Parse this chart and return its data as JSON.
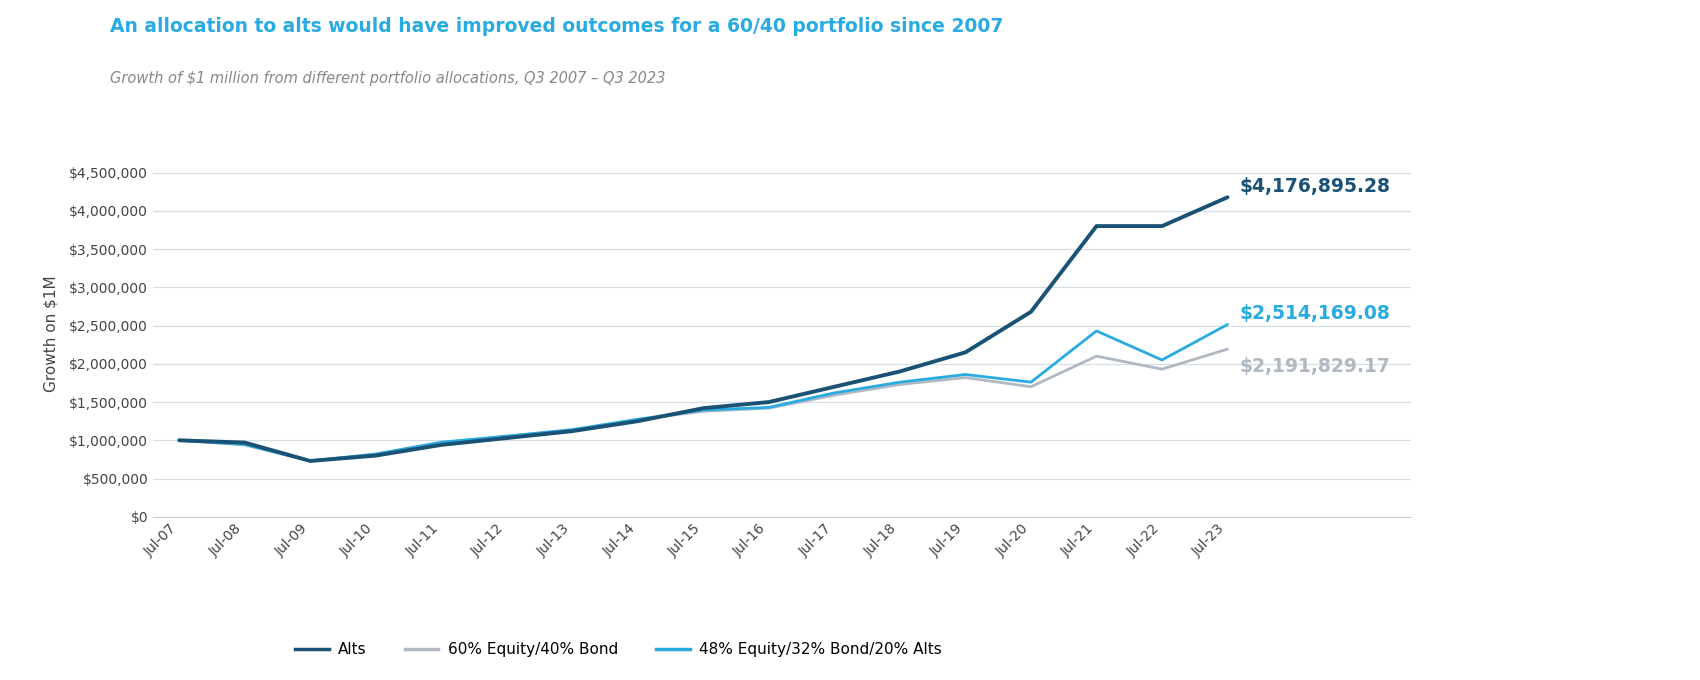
{
  "title": "An allocation to alts would have improved outcomes for a 60/40 portfolio since 2007",
  "subtitle": "Growth of $1 million from different portfolio allocations, Q3 2007 – Q3 2023",
  "title_color": "#29abe2",
  "subtitle_color": "#888888",
  "ylabel": "Growth on $1M",
  "x_labels": [
    "Jul-07",
    "Jul-08",
    "Jul-09",
    "Jul-10",
    "Jul-11",
    "Jul-12",
    "Jul-13",
    "Jul-14",
    "Jul-15",
    "Jul-16",
    "Jul-17",
    "Jul-18",
    "Jul-19",
    "Jul-20",
    "Jul-21",
    "Jul-22",
    "Jul-23"
  ],
  "ylim": [
    0,
    4800000
  ],
  "yticks": [
    0,
    500000,
    1000000,
    1500000,
    2000000,
    2500000,
    3000000,
    3500000,
    4000000,
    4500000
  ],
  "ytick_labels": [
    "$0",
    "$500,000",
    "$1,000,000",
    "$1,500,000",
    "$2,000,000",
    "$2,500,000",
    "$3,000,000",
    "$3,500,000",
    "$4,000,000",
    "$4,500,000"
  ],
  "series": {
    "alts": {
      "label": "Alts",
      "color": "#1a5276",
      "linewidth": 2.8,
      "values": [
        1000000,
        970000,
        730000,
        800000,
        940000,
        1030000,
        1120000,
        1250000,
        1420000,
        1500000,
        1700000,
        1900000,
        2150000,
        2680000,
        3800000,
        3800000,
        4176895.28
      ]
    },
    "bond60_40": {
      "label": "60% Equity/40% Bond",
      "color": "#b0b8c1",
      "linewidth": 2.0,
      "values": [
        1000000,
        940000,
        730000,
        820000,
        970000,
        1050000,
        1130000,
        1270000,
        1380000,
        1420000,
        1590000,
        1730000,
        1820000,
        1700000,
        2100000,
        1930000,
        2191829.17
      ]
    },
    "alts48": {
      "label": "48% Equity/32% Bond/20% Alts",
      "color": "#29abe2",
      "linewidth": 2.0,
      "values": [
        1000000,
        945000,
        730000,
        820000,
        975000,
        1055000,
        1140000,
        1275000,
        1395000,
        1430000,
        1620000,
        1760000,
        1860000,
        1760000,
        2430000,
        2050000,
        2514169.08
      ]
    }
  },
  "end_labels": {
    "alts": {
      "text": "$4,176,895.28",
      "color": "#1a5276",
      "fontsize": 13.5
    },
    "alts48": {
      "text": "$2,514,169.08",
      "color": "#29abe2",
      "fontsize": 13.5
    },
    "bond60_40": {
      "text": "$2,191,829.17",
      "color": "#b0b8c1",
      "fontsize": 13.5
    }
  },
  "legend": [
    {
      "label": "Alts",
      "color": "#1a5276"
    },
    {
      "label": "60% Equity/40% Bond",
      "color": "#b0b8c1"
    },
    {
      "label": "48% Equity/32% Bond/20% Alts",
      "color": "#29abe2"
    }
  ],
  "background_color": "#ffffff",
  "grid_color": "#d5dde5"
}
